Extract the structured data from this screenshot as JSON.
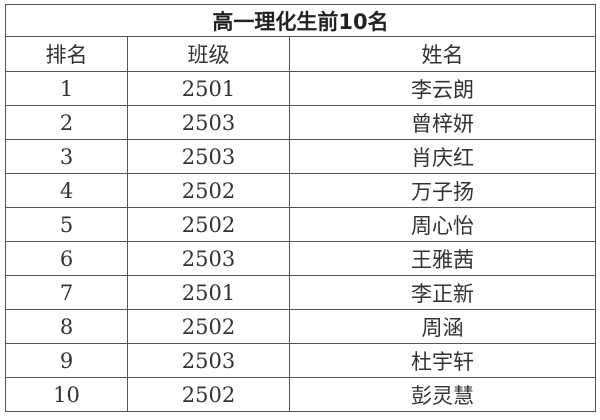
{
  "title": "高一理化生前10名",
  "columns": [
    "排名",
    "班级",
    "姓名"
  ],
  "rows": [
    {
      "rank": "1",
      "class": "2501",
      "name": "李云朗"
    },
    {
      "rank": "2",
      "class": "2503",
      "name": "曾梓妍"
    },
    {
      "rank": "3",
      "class": "2503",
      "name": "肖庆红"
    },
    {
      "rank": "4",
      "class": "2502",
      "name": "万子扬"
    },
    {
      "rank": "5",
      "class": "2502",
      "name": "周心怡"
    },
    {
      "rank": "6",
      "class": "2503",
      "name": "王雅茜"
    },
    {
      "rank": "7",
      "class": "2501",
      "name": "李正新"
    },
    {
      "rank": "8",
      "class": "2502",
      "name": "周涵"
    },
    {
      "rank": "9",
      "class": "2503",
      "name": "杜宇轩"
    },
    {
      "rank": "10",
      "class": "2502",
      "name": "彭灵慧"
    }
  ]
}
